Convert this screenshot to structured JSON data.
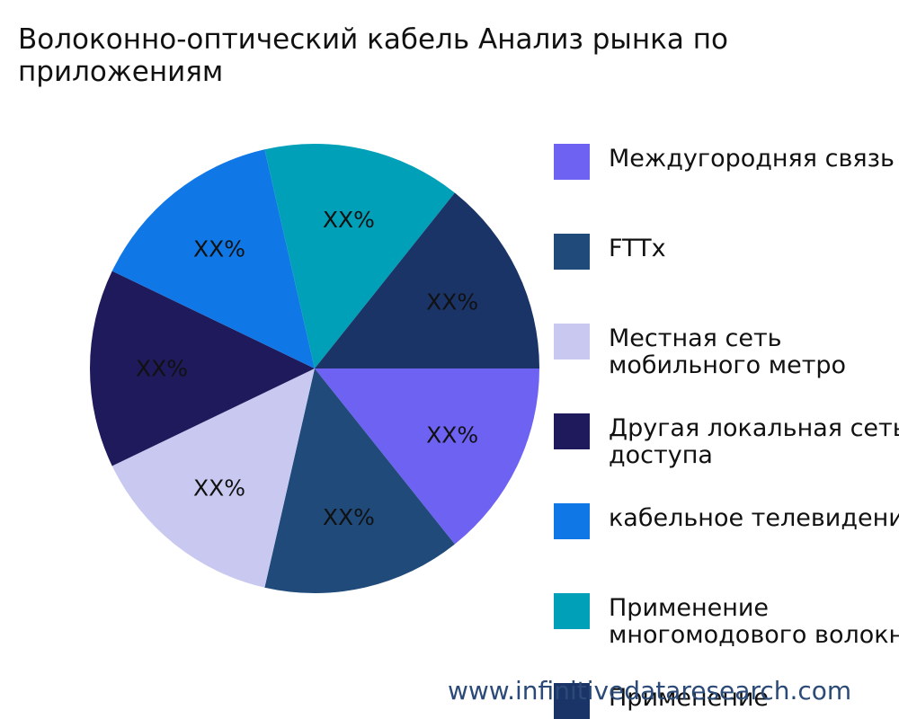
{
  "chart_data": {
    "type": "pie",
    "title": "Волоконно-оптический кабель Анализ рынка по приложениям",
    "categories": [
      "Междугородняя связь",
      "FTTx",
      "Местная сеть мобильного метро",
      "Другая локальная сеть доступа",
      "кабельное телевидение",
      "Применение многомодового волокна",
      "Применение"
    ],
    "values": [
      1,
      1,
      1,
      1,
      1,
      1,
      1
    ],
    "slice_labels": [
      "XX%",
      "XX%",
      "XX%",
      "XX%",
      "XX%",
      "XX%",
      "XX%"
    ],
    "colors": [
      "#6e62f2",
      "#1f4a7a",
      "#c8c8f0",
      "#1f1a5c",
      "#0f78e6",
      "#00a0b8",
      "#1a3468"
    ],
    "legend_position": "right"
  },
  "legend_items": [
    "Междугородняя связь",
    "FTTx",
    "Местная сеть\nмобильного метро",
    "Другая локальная сеть\nдоступа",
    "кабельное телевидение",
    "Применение\nмногомодового волокна",
    "Применение"
  ],
  "watermark": "www.infinitivedataresearch.com"
}
